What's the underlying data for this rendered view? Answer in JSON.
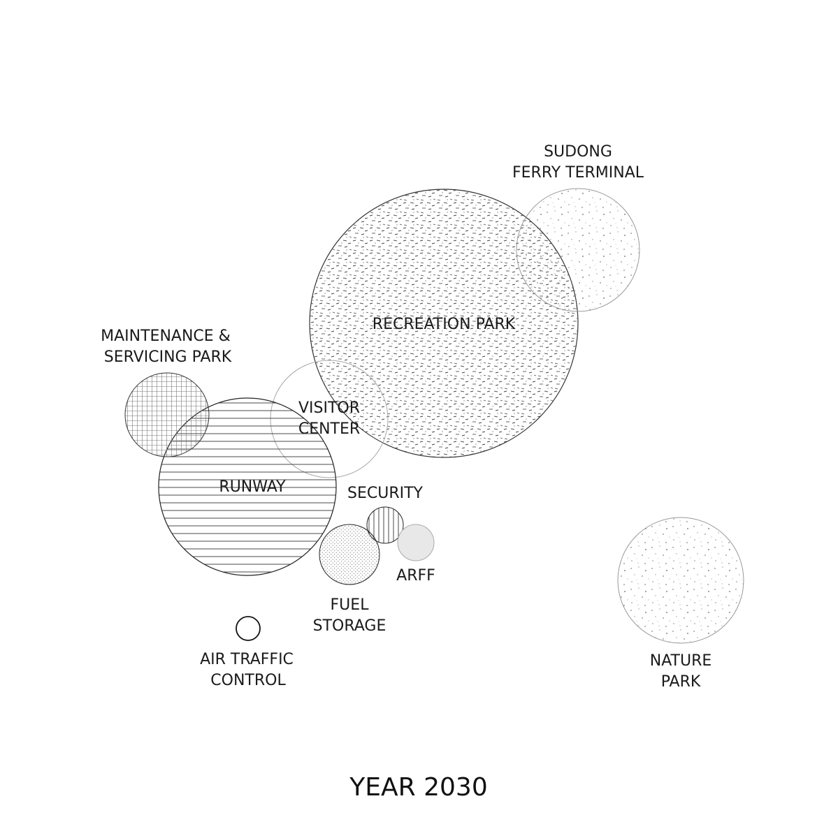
{
  "diagram": {
    "title": "YEAR 2030",
    "nodes": {
      "recreation_park": {
        "label": "RECREATION PARK",
        "pattern": "dash-stipple",
        "stroke": "#333333"
      },
      "sudong_ferry_terminal": {
        "line1": "SUDONG",
        "line2": "FERRY TERMINAL",
        "pattern": "dot-stipple",
        "stroke": "#999999"
      },
      "maintenance_servicing_park": {
        "line1": "MAINTENANCE &",
        "line2": "SERVICING PARK",
        "pattern": "grid",
        "stroke": "#333333"
      },
      "visitor_center": {
        "line1": "VISITOR",
        "line2": "CENTER",
        "pattern": "none",
        "stroke": "#aaaaaa"
      },
      "runway": {
        "label": "RUNWAY",
        "pattern": "horizontal-lines",
        "stroke": "#222222"
      },
      "security": {
        "label": "SECURITY",
        "pattern": "vertical-lines",
        "stroke": "#222222"
      },
      "arff": {
        "label": "ARFF",
        "pattern": "solid-light-gray",
        "fill": "#e8e8e8",
        "stroke": "#aaaaaa"
      },
      "fuel_storage": {
        "line1": "FUEL",
        "line2": "STORAGE",
        "pattern": "fine-dots",
        "stroke": "#222222"
      },
      "air_traffic_control": {
        "line1": "AIR TRAFFIC",
        "line2": "CONTROL",
        "pattern": "none",
        "stroke": "#111111"
      },
      "nature_park": {
        "line1": "NATURE",
        "line2": "PARK",
        "pattern": "dot-stipple",
        "stroke": "#999999"
      }
    }
  }
}
